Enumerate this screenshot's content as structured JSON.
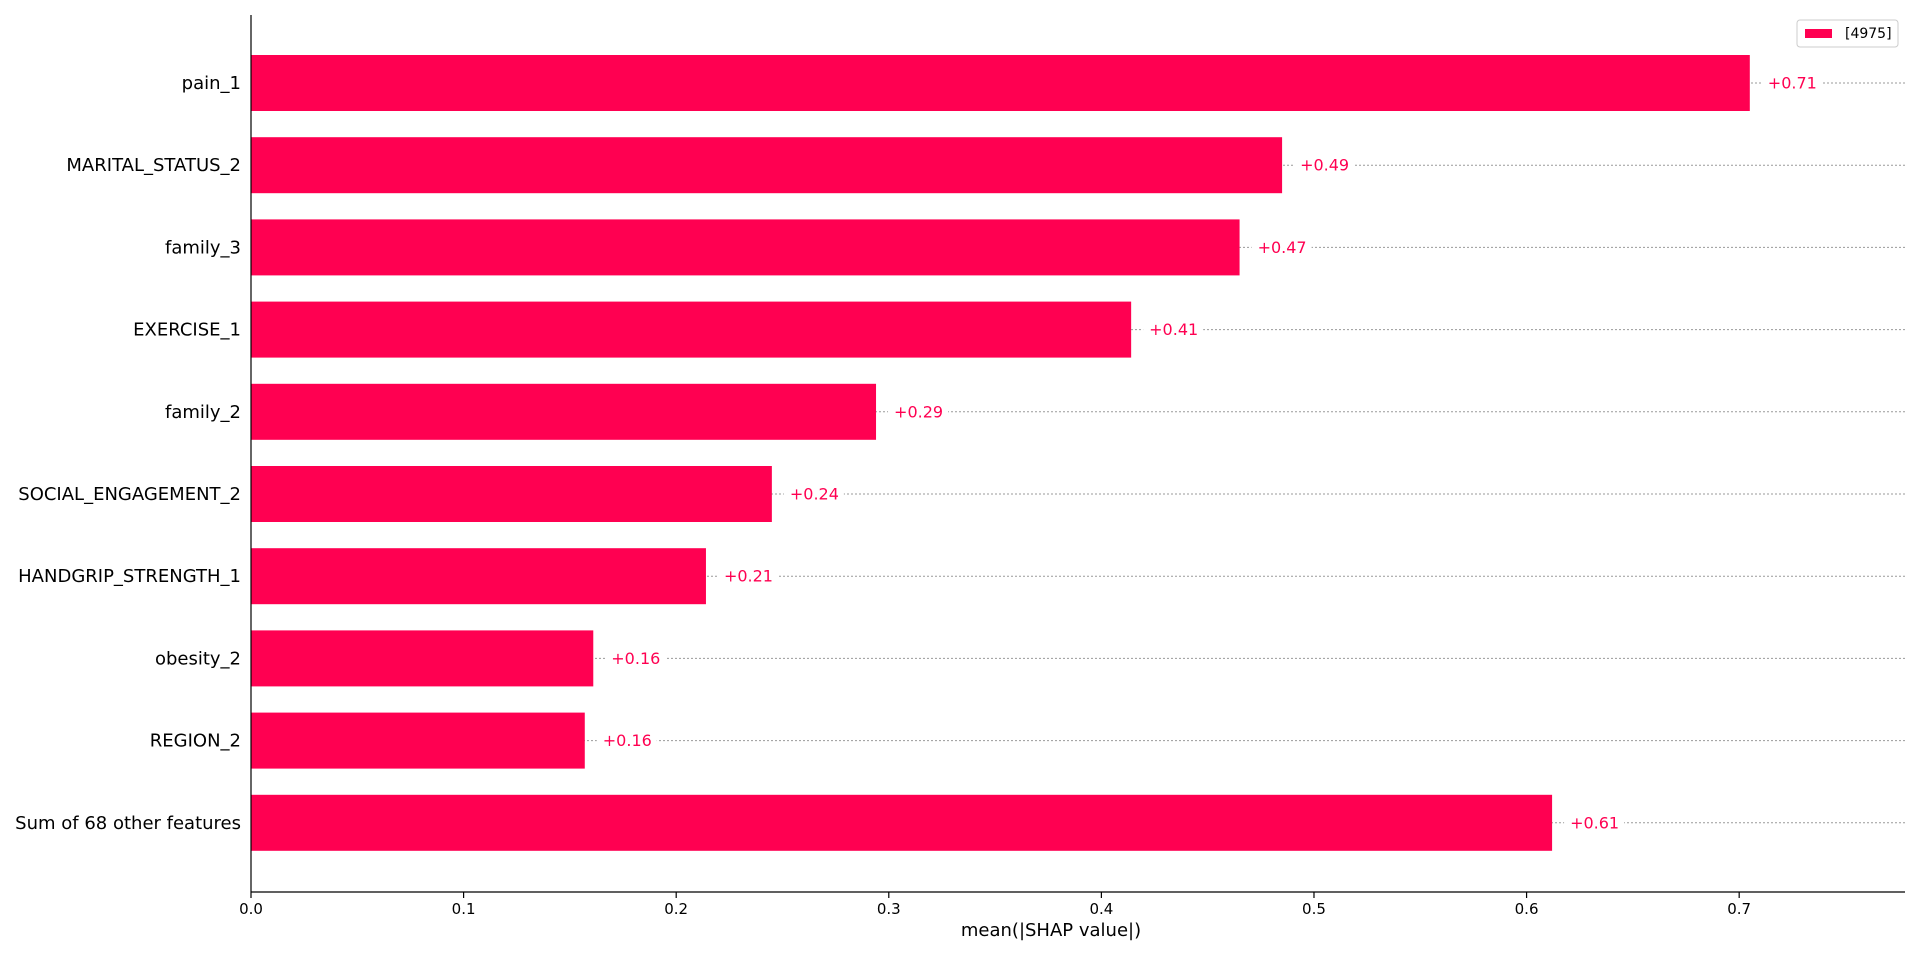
{
  "chart_data": {
    "type": "bar",
    "orientation": "horizontal",
    "categories": [
      "pain_1",
      "MARITAL_STATUS_2",
      "family_3",
      "EXERCISE_1",
      "family_2",
      "SOCIAL_ENGAGEMENT_2",
      "HANDGRIP_STRENGTH_1",
      "obesity_2",
      "REGION_2",
      "Sum of 68 other features"
    ],
    "series": [
      {
        "name": "[4975]",
        "values": [
          0.705,
          0.485,
          0.465,
          0.414,
          0.294,
          0.245,
          0.214,
          0.161,
          0.157,
          0.612
        ],
        "value_labels": [
          "+0.71",
          "+0.49",
          "+0.47",
          "+0.41",
          "+0.29",
          "+0.24",
          "+0.21",
          "+0.16",
          "+0.16",
          "+0.61"
        ]
      }
    ],
    "xlabel": "mean(|SHAP value|)",
    "ylabel": "",
    "title": "",
    "xlim": [
      0.0,
      0.778
    ],
    "xticks": [
      "0.0",
      "0.1",
      "0.2",
      "0.3",
      "0.4",
      "0.5",
      "0.6",
      "0.7"
    ],
    "grid": false,
    "legend_position": "top-right",
    "colors": {
      "bar": "#ff0051",
      "guide_line": "#9a9a9a",
      "axis": "#000000"
    }
  }
}
